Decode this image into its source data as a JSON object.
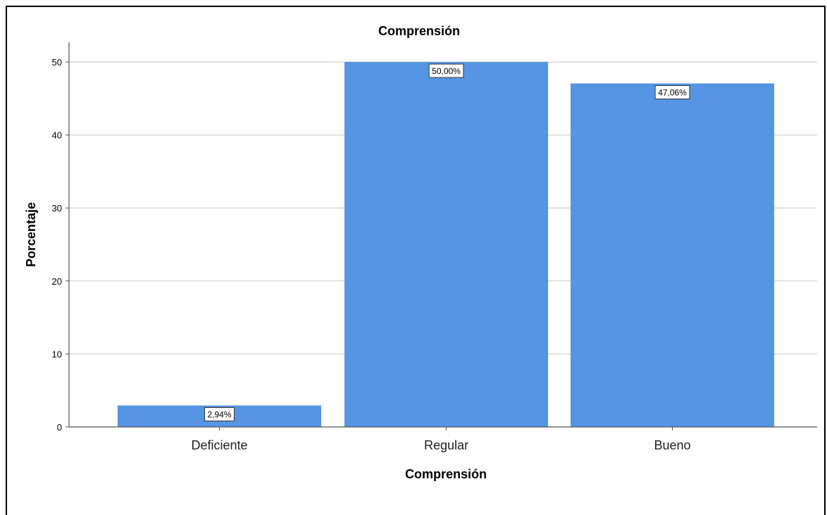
{
  "chart_data": {
    "type": "bar",
    "title": "Comprensión",
    "xlabel": "Comprensión",
    "ylabel": "Porcentaje",
    "categories": [
      "Deficiente",
      "Regular",
      "Bueno"
    ],
    "values": [
      2.94,
      50.0,
      47.06
    ],
    "data_labels": [
      "2,94%",
      "50,00%",
      "47,06%"
    ],
    "ylim": [
      0,
      52
    ],
    "yticks": [
      0,
      10,
      20,
      30,
      40,
      50
    ],
    "grid": true,
    "legend": "none",
    "colors": {
      "bar": "#5595E4",
      "grid": "#d9d9d9",
      "axis": "#555555"
    }
  }
}
